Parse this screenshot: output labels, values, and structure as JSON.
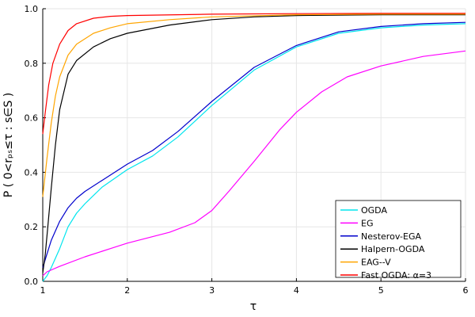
{
  "chart_data": {
    "type": "line",
    "title": "",
    "xlabel": "τ",
    "ylabel": "P ( 0<rₚₛ≤τ : s∈S )",
    "xlim": [
      1,
      6
    ],
    "ylim": [
      0,
      1
    ],
    "xticks": [
      1,
      2,
      3,
      4,
      5,
      6
    ],
    "yticks": [
      0.0,
      0.2,
      0.4,
      0.6,
      0.8,
      1.0
    ],
    "ytick_labels": [
      "0.0",
      "0.2",
      "0.4",
      "0.6",
      "0.8",
      "1.0"
    ],
    "grid": true,
    "legend_position": "bottom-right",
    "series": [
      {
        "name": "OGDA",
        "color": "#00e5ee",
        "points": [
          [
            1,
            0.0
          ],
          [
            1.05,
            0.02
          ],
          [
            1.1,
            0.05
          ],
          [
            1.2,
            0.12
          ],
          [
            1.3,
            0.2
          ],
          [
            1.4,
            0.25
          ],
          [
            1.5,
            0.285
          ],
          [
            1.7,
            0.345
          ],
          [
            2,
            0.41
          ],
          [
            2.3,
            0.46
          ],
          [
            2.6,
            0.53
          ],
          [
            3,
            0.645
          ],
          [
            3.5,
            0.775
          ],
          [
            4,
            0.86
          ],
          [
            4.5,
            0.91
          ],
          [
            5,
            0.93
          ],
          [
            5.5,
            0.94
          ],
          [
            6,
            0.945
          ]
        ]
      },
      {
        "name": "EG",
        "color": "#ff00ff",
        "points": [
          [
            1,
            0.02
          ],
          [
            1.05,
            0.035
          ],
          [
            1.2,
            0.055
          ],
          [
            1.5,
            0.09
          ],
          [
            1.8,
            0.12
          ],
          [
            2,
            0.14
          ],
          [
            2.5,
            0.18
          ],
          [
            2.8,
            0.215
          ],
          [
            3,
            0.26
          ],
          [
            3.2,
            0.33
          ],
          [
            3.5,
            0.44
          ],
          [
            3.8,
            0.555
          ],
          [
            4,
            0.62
          ],
          [
            4.3,
            0.695
          ],
          [
            4.6,
            0.75
          ],
          [
            5,
            0.79
          ],
          [
            5.5,
            0.825
          ],
          [
            6,
            0.845
          ]
        ]
      },
      {
        "name": "Nesterov-EGA",
        "color": "#0000cc",
        "points": [
          [
            1,
            0.05
          ],
          [
            1.05,
            0.1
          ],
          [
            1.1,
            0.15
          ],
          [
            1.2,
            0.22
          ],
          [
            1.3,
            0.27
          ],
          [
            1.4,
            0.305
          ],
          [
            1.5,
            0.33
          ],
          [
            1.7,
            0.37
          ],
          [
            2,
            0.43
          ],
          [
            2.3,
            0.48
          ],
          [
            2.6,
            0.55
          ],
          [
            3,
            0.66
          ],
          [
            3.5,
            0.785
          ],
          [
            4,
            0.865
          ],
          [
            4.5,
            0.915
          ],
          [
            5,
            0.935
          ],
          [
            5.5,
            0.945
          ],
          [
            6,
            0.95
          ]
        ]
      },
      {
        "name": "Halpern-OGDA",
        "color": "#000000",
        "points": [
          [
            1,
            0.03
          ],
          [
            1.03,
            0.1
          ],
          [
            1.06,
            0.2
          ],
          [
            1.1,
            0.34
          ],
          [
            1.15,
            0.5
          ],
          [
            1.2,
            0.63
          ],
          [
            1.3,
            0.76
          ],
          [
            1.4,
            0.81
          ],
          [
            1.6,
            0.86
          ],
          [
            1.8,
            0.89
          ],
          [
            2,
            0.91
          ],
          [
            2.5,
            0.94
          ],
          [
            3,
            0.96
          ],
          [
            3.5,
            0.97
          ],
          [
            4,
            0.975
          ],
          [
            5,
            0.978
          ],
          [
            6,
            0.978
          ]
        ]
      },
      {
        "name": "EAG--V",
        "color": "#ffa500",
        "points": [
          [
            1,
            0.31
          ],
          [
            1.05,
            0.45
          ],
          [
            1.1,
            0.58
          ],
          [
            1.15,
            0.68
          ],
          [
            1.2,
            0.75
          ],
          [
            1.3,
            0.83
          ],
          [
            1.4,
            0.87
          ],
          [
            1.6,
            0.91
          ],
          [
            1.8,
            0.93
          ],
          [
            2,
            0.945
          ],
          [
            2.5,
            0.96
          ],
          [
            3,
            0.97
          ],
          [
            4,
            0.978
          ],
          [
            5,
            0.98
          ],
          [
            6,
            0.98
          ]
        ]
      },
      {
        "name": "Fast OGDA: α=3",
        "color": "#ff0000",
        "points": [
          [
            1,
            0.54
          ],
          [
            1.03,
            0.62
          ],
          [
            1.07,
            0.72
          ],
          [
            1.12,
            0.8
          ],
          [
            1.2,
            0.87
          ],
          [
            1.3,
            0.92
          ],
          [
            1.4,
            0.945
          ],
          [
            1.6,
            0.965
          ],
          [
            1.8,
            0.972
          ],
          [
            2,
            0.975
          ],
          [
            3,
            0.98
          ],
          [
            4,
            0.982
          ],
          [
            5,
            0.983
          ],
          [
            6,
            0.983
          ]
        ]
      }
    ]
  }
}
